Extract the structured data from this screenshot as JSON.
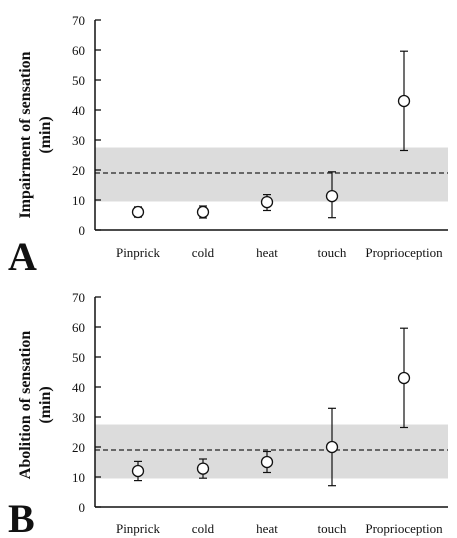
{
  "chart_data": [
    {
      "type": "scatter",
      "panel_label": "A",
      "ylabel_line1": "Impairment of sensation",
      "ylabel_line2": "(min)",
      "categories": [
        "Pinprick",
        "cold",
        "heat",
        "touch",
        "Proprioception"
      ],
      "series": [
        {
          "values": [
            6,
            6,
            9.3,
            11.3,
            43
          ],
          "err_low": [
            4.3,
            4,
            6.5,
            4.1,
            26.5
          ],
          "err_high": [
            7.7,
            8,
            11.8,
            19.4,
            59.6
          ]
        }
      ],
      "reference_band": [
        9.5,
        27.5
      ],
      "reference_line": 19,
      "ylim": [
        0,
        70
      ],
      "yticks": [
        0,
        10,
        20,
        30,
        40,
        50,
        60,
        70
      ]
    },
    {
      "type": "scatter",
      "panel_label": "B",
      "ylabel_line1": "Abolition of sensation",
      "ylabel_line2": "(min)",
      "categories": [
        "Pinprick",
        "cold",
        "heat",
        "touch",
        "Proprioception"
      ],
      "series": [
        {
          "values": [
            12,
            12.8,
            15,
            20,
            43
          ],
          "err_low": [
            8.8,
            9.6,
            11.5,
            7.1,
            26.5
          ],
          "err_high": [
            15.2,
            16,
            18.5,
            32.9,
            59.6
          ]
        }
      ],
      "reference_band": [
        9.5,
        27.5
      ],
      "reference_line": 19,
      "ylim": [
        0,
        70
      ],
      "yticks": [
        0,
        10,
        20,
        30,
        40,
        50,
        60,
        70
      ]
    }
  ]
}
